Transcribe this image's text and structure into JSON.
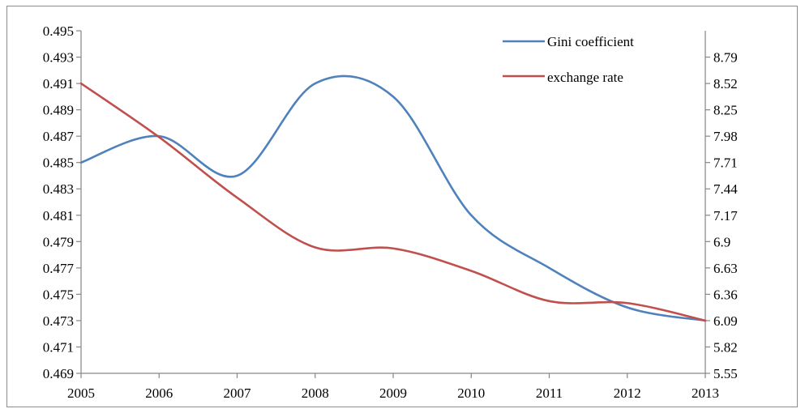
{
  "chart_data": {
    "type": "line",
    "x": [
      "2005",
      "2006",
      "2007",
      "2008",
      "2009",
      "2010",
      "2011",
      "2012",
      "2013"
    ],
    "series": [
      {
        "name": "Gini coefficient",
        "axis": "left",
        "color": "#4f81bd",
        "values": [
          0.485,
          0.487,
          0.484,
          0.491,
          0.49,
          0.481,
          0.477,
          0.474,
          0.473
        ]
      },
      {
        "name": "exchange rate",
        "axis": "right",
        "color": "#c0504d",
        "values": [
          8.52,
          7.97,
          7.35,
          6.84,
          6.83,
          6.6,
          6.29,
          6.27,
          6.09
        ]
      }
    ],
    "left_axis": {
      "ylim": [
        0.469,
        0.495
      ],
      "ticks": [
        "0.469",
        "0.471",
        "0.473",
        "0.475",
        "0.477",
        "0.479",
        "0.481",
        "0.483",
        "0.485",
        "0.487",
        "0.489",
        "0.491",
        "0.493",
        "0.495"
      ]
    },
    "right_axis": {
      "ylim": [
        5.55,
        9.06
      ],
      "ticks": [
        "5.55",
        "5.82",
        "6.09",
        "6.36",
        "6.63",
        "6.9",
        "7.17",
        "7.44",
        "7.71",
        "7.98",
        "8.25",
        "8.52",
        "8.79"
      ]
    },
    "grid": false,
    "legend_position": "top-right"
  }
}
